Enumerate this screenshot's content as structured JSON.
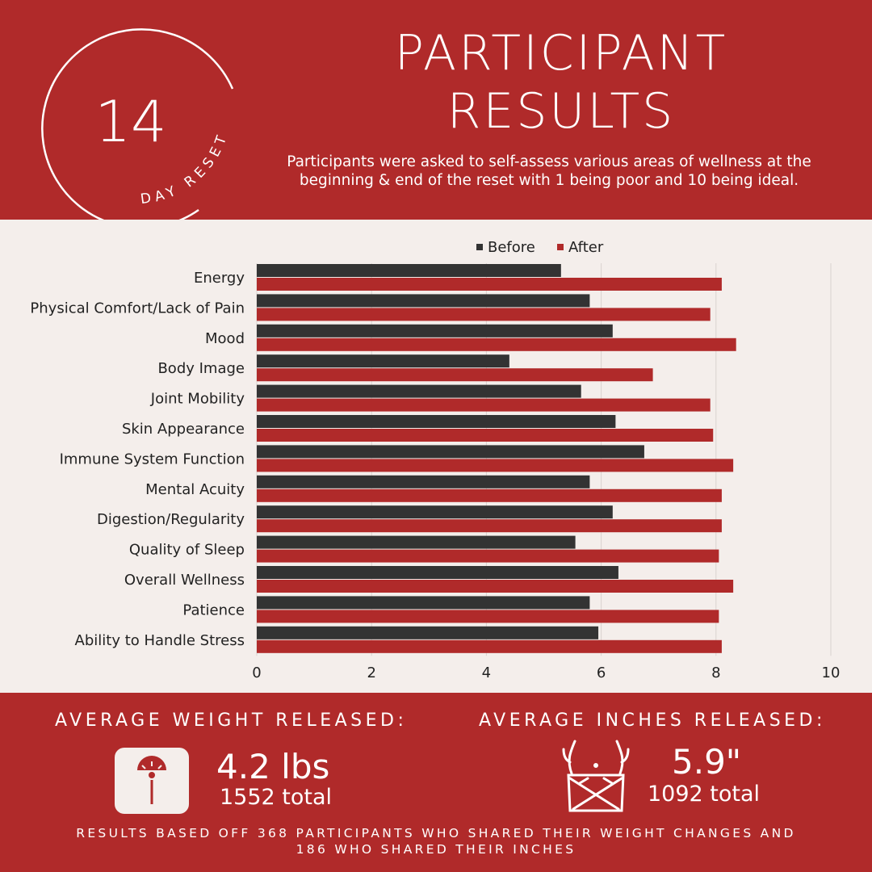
{
  "header": {
    "logo_number": "14",
    "logo_caption": "DAY RESET",
    "title_line1": "PARTICIPANT",
    "title_line2": "RESULTS",
    "subtitle_line1": "Participants were asked to self-assess various areas of wellness at the",
    "subtitle_line2": "beginning & end of the reset with 1 being poor and 10 being ideal."
  },
  "chart_data": {
    "type": "bar",
    "orientation": "horizontal",
    "categories": [
      "Energy",
      "Physical Comfort/Lack of Pain",
      "Mood",
      "Body Image",
      "Joint Mobility",
      "Skin Appearance",
      "Immune System Function",
      "Mental Acuity",
      "Digestion/Regularity",
      "Quality of Sleep",
      "Overall Wellness",
      "Patience",
      "Ability to Handle Stress"
    ],
    "series": [
      {
        "name": "Before",
        "values": [
          5.3,
          5.8,
          6.2,
          4.4,
          5.65,
          6.25,
          6.75,
          5.8,
          6.2,
          5.55,
          6.3,
          5.8,
          5.95
        ]
      },
      {
        "name": "After",
        "values": [
          8.1,
          7.9,
          8.35,
          6.9,
          7.9,
          7.95,
          8.3,
          8.1,
          8.1,
          8.05,
          8.3,
          8.05,
          8.1
        ]
      }
    ],
    "xlim": [
      0,
      10
    ],
    "ticks": [
      "0",
      "2",
      "4",
      "6",
      "8",
      "10"
    ],
    "tick_values": [
      0,
      2,
      4,
      6,
      8,
      10
    ],
    "grid": "vertical",
    "legend": "top-center",
    "colors": {
      "Before": "#333333",
      "After": "#b02a2a"
    }
  },
  "footer": {
    "weight_heading": "AVERAGE WEIGHT RELEASED:",
    "weight_value": "4.2 lbs",
    "weight_total": "1552 total",
    "inches_heading": "AVERAGE INCHES RELEASED:",
    "inches_value": "5.9\"",
    "inches_total": "1092 total",
    "footnote_line1": "RESULTS BASED OFF 368 PARTICIPANTS WHO SHARED THEIR WEIGHT CHANGES AND",
    "footnote_line2": "186 WHO SHARED THEIR INCHES",
    "icons": [
      "scale-icon",
      "waist-measure-icon"
    ]
  },
  "colors": {
    "brand_red": "#b02a2a",
    "panel_bg": "#f4eeeb",
    "bar_dark": "#333333",
    "text_dark": "#222222"
  }
}
